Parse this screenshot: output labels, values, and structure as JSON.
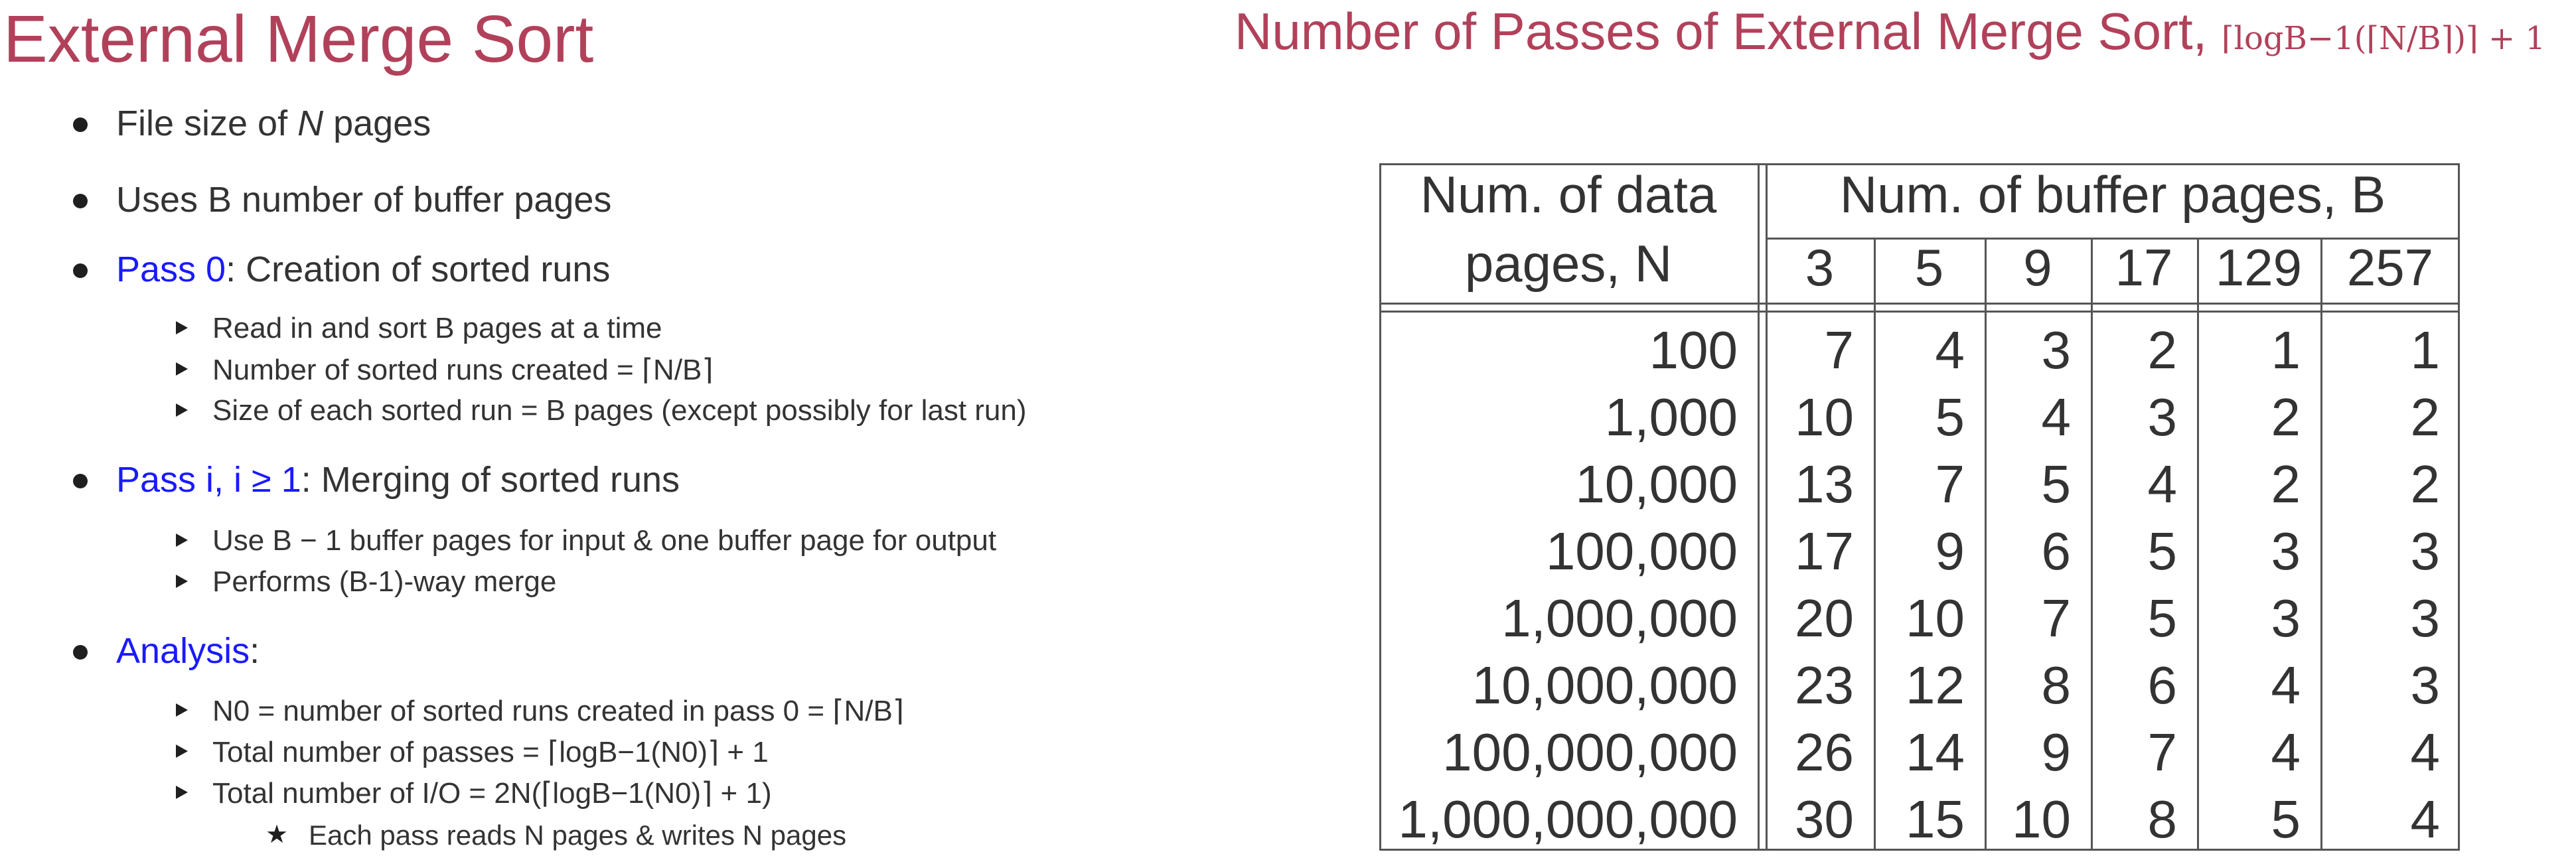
{
  "left": {
    "title": "External Merge Sort",
    "items": [
      {
        "pre": "File size of ",
        "math": "N",
        "post": " pages"
      },
      {
        "text": "Uses B number of buffer pages"
      },
      {
        "label": "Pass 0",
        "text": ": Creation of sorted runs",
        "subitems": [
          "Read in and sort B pages at a time",
          "Number of sorted runs created = ⌈N/B⌉",
          "Size of each sorted run = B pages (except possibly for last run)"
        ]
      },
      {
        "label": "Pass i, i ≥ 1",
        "text": ": Merging of sorted runs",
        "subitems": [
          "Use B − 1 buffer pages for input & one buffer page for output",
          "Performs (B-1)-way merge"
        ]
      },
      {
        "label": "Analysis",
        "text": ":",
        "subitems": [
          "N0 = number of sorted runs created in pass 0 = ⌈N/B⌉",
          "Total number of passes = ⌈logB−1(N0)⌉ + 1",
          "Total number of I/O = 2N(⌈logB−1(N0)⌉ + 1)"
        ],
        "subsubitems": [
          "Each pass reads N pages & writes N pages"
        ]
      }
    ]
  },
  "right": {
    "title": "Number of Passes of External Merge Sort, ",
    "title_formula": "⌈logB−1(⌈N/B⌉)⌉ + 1",
    "table": {
      "row_header_line1": "Num. of data",
      "row_header_line2": "pages, N",
      "col_group_header": "Num. of buffer pages, B",
      "columns": [
        "3",
        "5",
        "9",
        "17",
        "129",
        "257"
      ],
      "rows": [
        {
          "n": "100",
          "values": [
            "7",
            "4",
            "3",
            "2",
            "1",
            "1"
          ]
        },
        {
          "n": "1,000",
          "values": [
            "10",
            "5",
            "4",
            "3",
            "2",
            "2"
          ]
        },
        {
          "n": "10,000",
          "values": [
            "13",
            "7",
            "5",
            "4",
            "2",
            "2"
          ]
        },
        {
          "n": "100,000",
          "values": [
            "17",
            "9",
            "6",
            "5",
            "3",
            "3"
          ]
        },
        {
          "n": "1,000,000",
          "values": [
            "20",
            "10",
            "7",
            "5",
            "3",
            "3"
          ]
        },
        {
          "n": "10,000,000",
          "values": [
            "23",
            "12",
            "8",
            "6",
            "4",
            "3"
          ]
        },
        {
          "n": "100,000,000",
          "values": [
            "26",
            "14",
            "9",
            "7",
            "4",
            "4"
          ]
        },
        {
          "n": "1,000,000,000",
          "values": [
            "30",
            "15",
            "10",
            "8",
            "5",
            "4"
          ]
        }
      ]
    }
  }
}
